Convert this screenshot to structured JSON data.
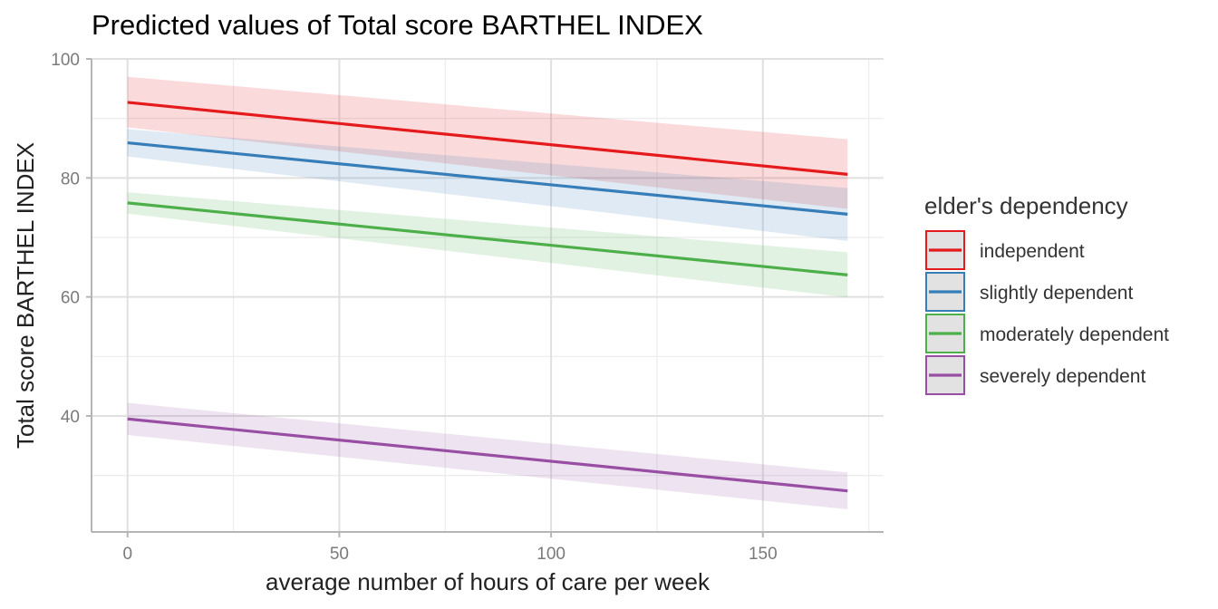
{
  "chart_data": {
    "type": "line",
    "title": "Predicted values of Total score BARTHEL INDEX",
    "xlabel": "average number of hours of care per week",
    "ylabel": "Total score BARTHEL INDEX",
    "xlim": [
      -8.5,
      178.5
    ],
    "ylim": [
      20.5,
      100
    ],
    "x_ticks": [
      0,
      50,
      100,
      150
    ],
    "y_ticks": [
      40,
      60,
      80,
      100
    ],
    "x_minor": [
      25,
      75,
      125,
      175
    ],
    "y_minor": [
      30,
      50,
      70,
      90
    ],
    "grid": true,
    "legend_position": "right",
    "legend_title": "elder's dependency",
    "x": [
      0,
      170
    ],
    "series": [
      {
        "name": "independent",
        "color": "#E41A1C",
        "values": [
          92.7,
          80.6
        ],
        "ci_low": [
          88.5,
          74.8
        ],
        "ci_high": [
          97.0,
          86.5
        ]
      },
      {
        "name": "slightly dependent",
        "color": "#377EB8",
        "values": [
          85.9,
          73.9
        ],
        "ci_low": [
          83.6,
          69.4
        ],
        "ci_high": [
          88.2,
          78.3
        ]
      },
      {
        "name": "moderately dependent",
        "color": "#4DAF4A",
        "values": [
          75.8,
          63.7
        ],
        "ci_low": [
          74.0,
          59.9
        ],
        "ci_high": [
          77.6,
          67.5
        ]
      },
      {
        "name": "severely dependent",
        "color": "#984EA3",
        "values": [
          39.5,
          27.4
        ],
        "ci_low": [
          36.8,
          24.3
        ],
        "ci_high": [
          42.2,
          30.5
        ]
      }
    ]
  }
}
